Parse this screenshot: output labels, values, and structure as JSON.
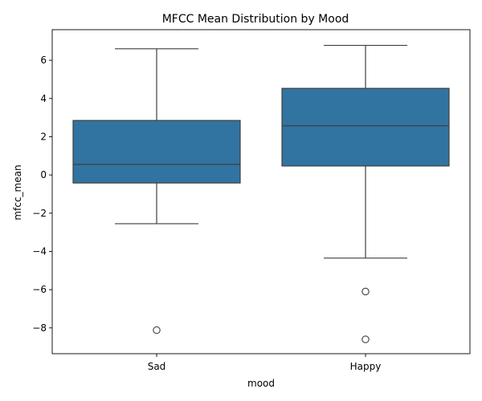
{
  "chart_data": {
    "type": "box",
    "title": "MFCC Mean Distribution by Mood",
    "xlabel": "mood",
    "ylabel": "mfcc_mean",
    "categories": [
      "Sad",
      "Happy"
    ],
    "boxes": [
      {
        "category": "Sad",
        "whisker_low": -2.55,
        "q1": -0.42,
        "median": 0.55,
        "q3": 2.85,
        "whisker_high": 6.6,
        "outliers": [
          -8.12
        ]
      },
      {
        "category": "Happy",
        "whisker_low": -4.35,
        "q1": 0.47,
        "median": 2.57,
        "q3": 4.53,
        "whisker_high": 6.78,
        "outliers": [
          -6.1,
          -8.6
        ]
      }
    ],
    "ylim": [
      -9.35,
      7.6
    ],
    "yticks": [
      -8,
      -6,
      -4,
      -2,
      0,
      2,
      4,
      6
    ],
    "ytick_labels": [
      "−8",
      "−6",
      "−4",
      "−2",
      "0",
      "2",
      "4",
      "6"
    ],
    "grid": false,
    "box_color": "#3274a1",
    "line_color": "#3f3f3f"
  }
}
